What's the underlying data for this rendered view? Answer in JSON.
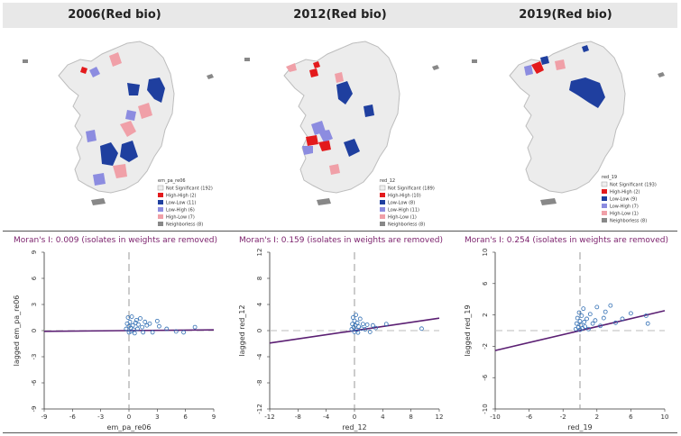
{
  "panels": [
    {
      "title": "2006(Red bio)",
      "legend": {
        "variable": "em_pa_re06",
        "items": [
          {
            "label": "Not Significant (192)",
            "color": "#efefef"
          },
          {
            "label": "High-High (2)",
            "color": "#e31a1c"
          },
          {
            "label": "Low-Low (11)",
            "color": "#1f3f9f"
          },
          {
            "label": "Low-High (6)",
            "color": "#8c8ce0"
          },
          {
            "label": "High-Low (7)",
            "color": "#f0a0a8"
          },
          {
            "label": "Neighborless (8)",
            "color": "#888888"
          }
        ]
      },
      "moran_text": "Moran's I: 0.009 (isolates in weights are removed)",
      "chart_data": {
        "type": "scatter",
        "xlabel": "em_pa_re06",
        "ylabel": "lagged em_pa_re06",
        "xlim": [
          -9,
          9
        ],
        "ylim": [
          -9,
          9
        ],
        "xticks": [
          "-9",
          "-6",
          "-3",
          "0",
          "3",
          "6",
          "9"
        ],
        "yticks": [
          "-9",
          "-6",
          "-3",
          "0",
          "3",
          "6",
          "9"
        ],
        "slope": 0.009,
        "points": [
          [
            -0.3,
            0.2
          ],
          [
            -0.2,
            0.8
          ],
          [
            -0.1,
            1.5
          ],
          [
            0,
            0.5
          ],
          [
            0,
            -0.2
          ],
          [
            0.1,
            1.0
          ],
          [
            0.2,
            0.3
          ],
          [
            0.2,
            -0.1
          ],
          [
            0.3,
            1.6
          ],
          [
            0.4,
            0.6
          ],
          [
            0.5,
            0.1
          ],
          [
            0.6,
            -0.3
          ],
          [
            0.7,
            0.9
          ],
          [
            0.8,
            1.2
          ],
          [
            0.9,
            0.2
          ],
          [
            1.0,
            0.7
          ],
          [
            1.2,
            1.4
          ],
          [
            1.4,
            0.4
          ],
          [
            1.5,
            -0.2
          ],
          [
            1.7,
            1.0
          ],
          [
            1.9,
            0.6
          ],
          [
            2.2,
            0.8
          ],
          [
            2.5,
            -0.2
          ],
          [
            3.0,
            1.1
          ],
          [
            3.2,
            0.5
          ],
          [
            4.0,
            0.2
          ],
          [
            5.0,
            -0.1
          ],
          [
            5.8,
            -0.2
          ],
          [
            7.0,
            0.4
          ]
        ]
      }
    },
    {
      "title": "2012(Red bio)",
      "legend": {
        "variable": "red_12",
        "items": [
          {
            "label": "Not Significant (189)",
            "color": "#efefef"
          },
          {
            "label": "High-High (10)",
            "color": "#e31a1c"
          },
          {
            "label": "Low-Low (8)",
            "color": "#1f3f9f"
          },
          {
            "label": "Low-High (11)",
            "color": "#8c8ce0"
          },
          {
            "label": "High-Low (1)",
            "color": "#f0a0a8"
          },
          {
            "label": "Neighborless (8)",
            "color": "#888888"
          }
        ]
      },
      "moran_text": "Moran's I: 0.159 (isolates in weights are removed)",
      "chart_data": {
        "type": "scatter",
        "xlabel": "red_12",
        "ylabel": "lagged red_12",
        "xlim": [
          -12,
          12
        ],
        "ylim": [
          -12,
          12
        ],
        "xticks": [
          "-12",
          "-8",
          "-4",
          "0",
          "4",
          "8",
          "12"
        ],
        "yticks": [
          "-12",
          "-8",
          "-4",
          "0",
          "4",
          "8",
          "12"
        ],
        "slope": 0.159,
        "points": [
          [
            -0.4,
            0.2
          ],
          [
            -0.3,
            1.0
          ],
          [
            -0.2,
            2.0
          ],
          [
            -0.1,
            0.5
          ],
          [
            0,
            -0.2
          ],
          [
            0,
            1.5
          ],
          [
            0.1,
            0.8
          ],
          [
            0.2,
            2.4
          ],
          [
            0.3,
            0.1
          ],
          [
            0.4,
            1.2
          ],
          [
            0.5,
            -0.3
          ],
          [
            0.6,
            0.6
          ],
          [
            0.8,
            1.8
          ],
          [
            1.0,
            0.3
          ],
          [
            1.2,
            1.0
          ],
          [
            1.5,
            0.2
          ],
          [
            1.8,
            0.9
          ],
          [
            2.2,
            -0.2
          ],
          [
            2.6,
            0.8
          ],
          [
            3.0,
            0.4
          ],
          [
            4.5,
            1.0
          ],
          [
            9.5,
            0.3
          ]
        ]
      }
    },
    {
      "title": "2019(Red bio)",
      "legend": {
        "variable": "red_19",
        "items": [
          {
            "label": "Not Significant (193)",
            "color": "#efefef"
          },
          {
            "label": "High-High (2)",
            "color": "#e31a1c"
          },
          {
            "label": "Low-Low (9)",
            "color": "#1f3f9f"
          },
          {
            "label": "Low-High (7)",
            "color": "#8c8ce0"
          },
          {
            "label": "High-Low (1)",
            "color": "#f0a0a8"
          },
          {
            "label": "Neighborless (8)",
            "color": "#888888"
          }
        ]
      },
      "moran_text": "Moran's I: 0.254 (isolates in weights are removed)",
      "chart_data": {
        "type": "scatter",
        "xlabel": "red_19",
        "ylabel": "lagged red_19",
        "xlim": [
          -10,
          10
        ],
        "ylim": [
          -10,
          10
        ],
        "xticks": [
          "-10",
          "-6",
          "-2",
          "2",
          "6",
          "10"
        ],
        "yticks": [
          "-10",
          "-6",
          "-2",
          "2",
          "6",
          "10"
        ],
        "slope": 0.254,
        "points": [
          [
            -0.5,
            0.2
          ],
          [
            -0.4,
            0.9
          ],
          [
            -0.3,
            1.6
          ],
          [
            -0.2,
            0.4
          ],
          [
            -0.1,
            2.3
          ],
          [
            0,
            0.1
          ],
          [
            0,
            1.2
          ],
          [
            0.1,
            0.7
          ],
          [
            0.2,
            1.9
          ],
          [
            0.3,
            0.3
          ],
          [
            0.4,
            2.8
          ],
          [
            0.5,
            1.1
          ],
          [
            0.6,
            0.5
          ],
          [
            0.8,
            1.5
          ],
          [
            1.0,
            0.2
          ],
          [
            1.2,
            2.1
          ],
          [
            1.5,
            0.9
          ],
          [
            1.8,
            1.3
          ],
          [
            2.0,
            3.0
          ],
          [
            2.4,
            0.6
          ],
          [
            2.8,
            1.6
          ],
          [
            3.0,
            2.4
          ],
          [
            3.6,
            3.2
          ],
          [
            4.2,
            1.0
          ],
          [
            5.0,
            1.5
          ],
          [
            6.0,
            2.2
          ],
          [
            7.8,
            1.9
          ],
          [
            8.0,
            0.9
          ]
        ]
      }
    }
  ]
}
